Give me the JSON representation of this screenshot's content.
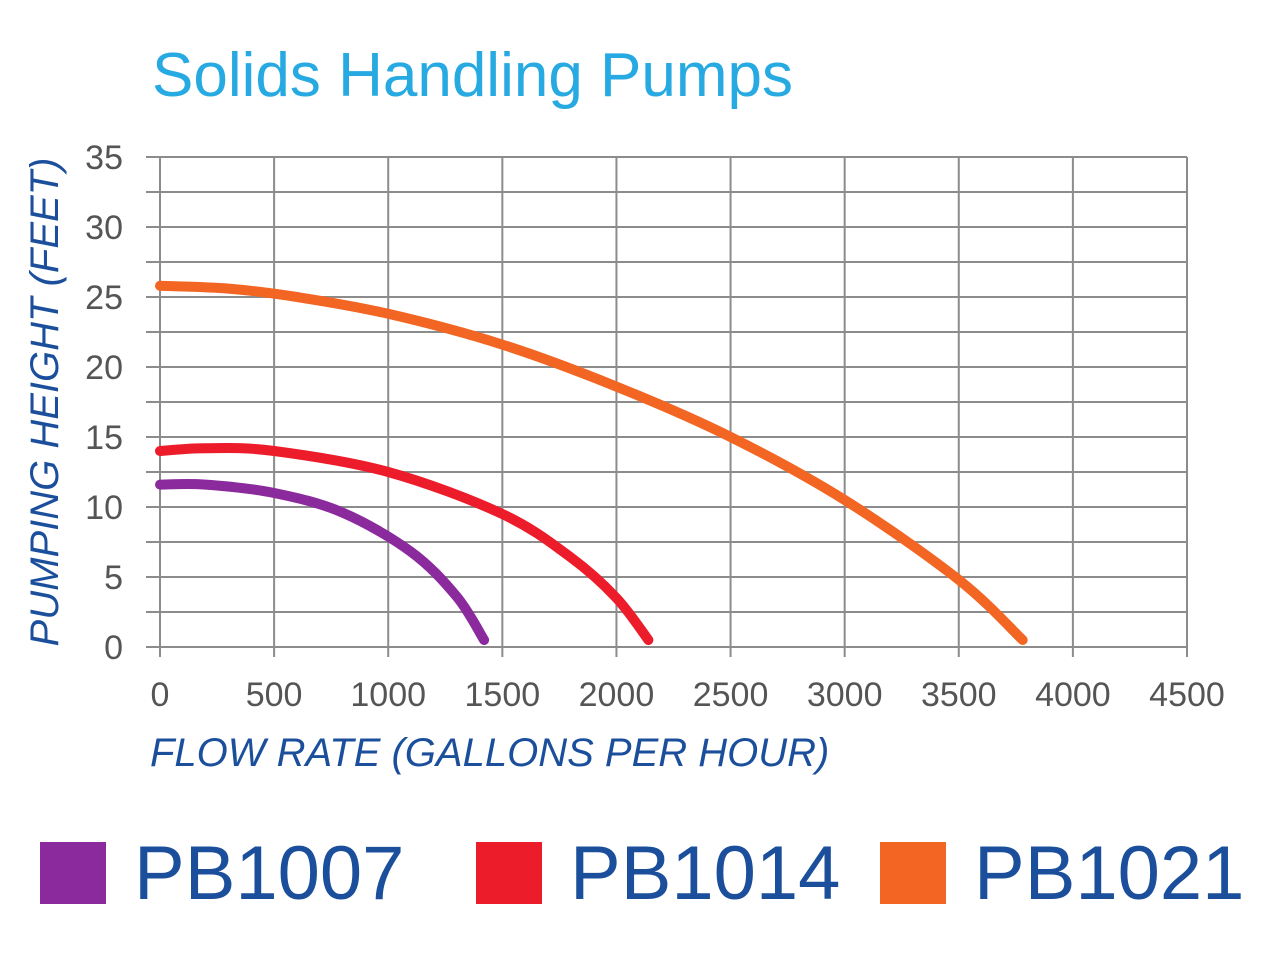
{
  "chart_data": {
    "type": "line",
    "title": "Solids Handling Pumps",
    "xlabel": "FLOW RATE (GALLONS PER HOUR)",
    "ylabel": "PUMPING HEIGHT (FEET)",
    "xlim": [
      0,
      4500
    ],
    "ylim": [
      0,
      35
    ],
    "x_ticks": [
      "0",
      "500",
      "1000",
      "1500",
      "2000",
      "2500",
      "3000",
      "3500",
      "4000",
      "4500"
    ],
    "y_ticks": [
      "0",
      "5",
      "10",
      "15",
      "20",
      "25",
      "30",
      "35"
    ],
    "grid": true,
    "legend_position": "bottom",
    "series": [
      {
        "name": "PB1007",
        "color": "#8b2a9c",
        "x": [
          0,
          200,
          500,
          800,
          1100,
          1300,
          1420
        ],
        "y": [
          11.6,
          11.6,
          11.0,
          9.6,
          6.8,
          3.6,
          0.5
        ]
      },
      {
        "name": "PB1014",
        "color": "#ec1c2b",
        "x": [
          0,
          200,
          500,
          1000,
          1500,
          1800,
          2000,
          2140
        ],
        "y": [
          14.0,
          14.2,
          14.0,
          12.5,
          9.5,
          6.4,
          3.5,
          0.5
        ]
      },
      {
        "name": "PB1021",
        "color": "#f26522",
        "x": [
          0,
          300,
          600,
          1000,
          1500,
          2000,
          2500,
          3000,
          3500,
          3780
        ],
        "y": [
          25.8,
          25.6,
          25.0,
          23.8,
          21.6,
          18.6,
          15.0,
          10.5,
          4.8,
          0.5
        ]
      }
    ],
    "colors": {
      "title": "#27aae1",
      "axis_title": "#1b4f9c",
      "legend_text": "#1b4f9c",
      "tick_text": "#555555",
      "grid": "#8c8c8c"
    }
  }
}
